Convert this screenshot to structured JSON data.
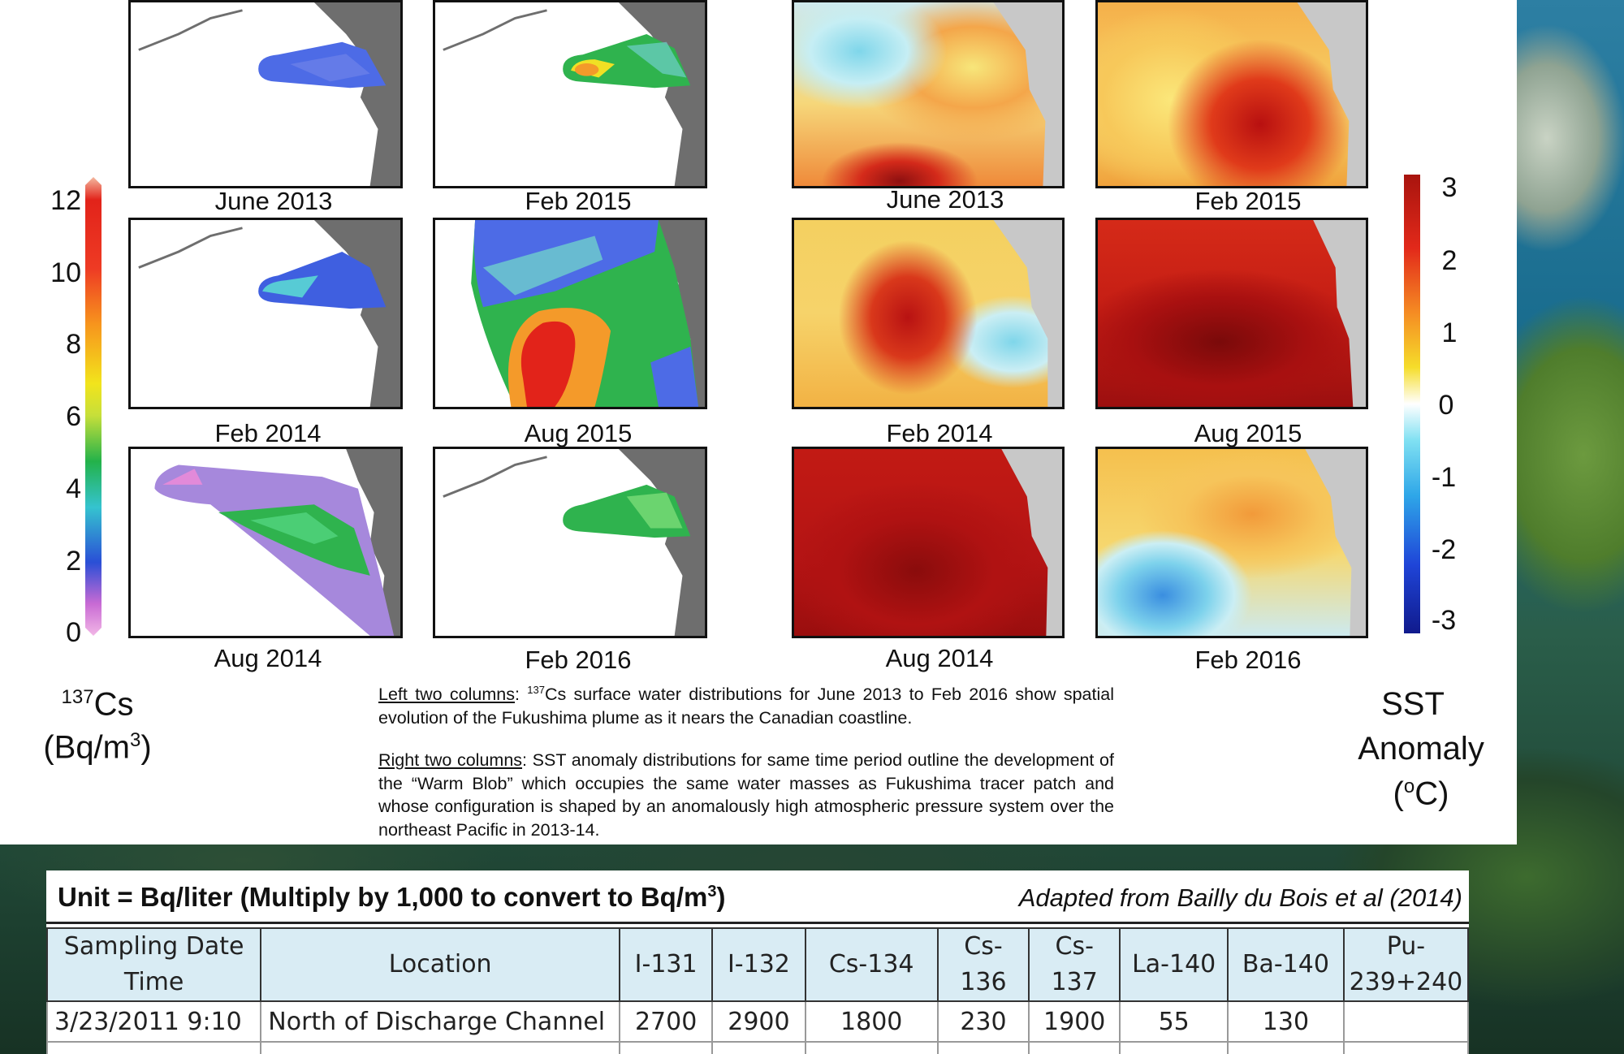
{
  "cs_colorbar": {
    "ticks": [
      "12",
      "10",
      "8",
      "6",
      "4",
      "2",
      "0"
    ],
    "isotope_sup": "137",
    "isotope": "Cs",
    "unit_prefix": "(Bq/m",
    "unit_sup": "3",
    "unit_suffix": ")"
  },
  "sst_colorbar": {
    "ticks": [
      "3",
      "2",
      "1",
      "0",
      "-1",
      "-2",
      "-3"
    ],
    "title_line1": "SST",
    "title_line2": "Anomaly",
    "unit_prefix": "(",
    "unit_sup": "o",
    "unit_suffix": "C)"
  },
  "cs_panels": [
    {
      "label": "June 2013"
    },
    {
      "label": "Feb 2015"
    },
    {
      "label": "Feb 2014"
    },
    {
      "label": "Aug 2015"
    },
    {
      "label": "Aug 2014"
    },
    {
      "label": "Feb 2016"
    }
  ],
  "sst_panels": [
    {
      "label": "June 2013"
    },
    {
      "label": "Feb 2015"
    },
    {
      "label": "Feb 2014"
    },
    {
      "label": "Aug 2015"
    },
    {
      "label": "Aug 2014"
    },
    {
      "label": "Feb 2016"
    }
  ],
  "caption": {
    "left_heading": "Left two columns",
    "left_sup": "137",
    "left_text": "Cs surface water distributions for June 2013 to Feb 2016 show spatial evolution of the Fukushima plume as it nears the Canadian coastline.",
    "right_heading": "Right two columns",
    "right_text": ": SST anomaly distributions for same time period outline the development of the “Warm Blob” which occupies the same water masses as Fukushima tracer patch and whose configuration is shaped by an anomalously high atmospheric pressure system over the northeast Pacific in 2013-14."
  },
  "table": {
    "unit_text": "Unit = Bq/liter (Multiply by 1,000 to convert to Bq/m",
    "unit_sup": "3",
    "unit_close": ")",
    "adapted": "Adapted from Bailly du Bois et al (2014)",
    "headers": [
      "Sampling Date Time",
      "Location",
      "I-131",
      "I-132",
      "Cs-134",
      "Cs-136",
      "Cs-137",
      "La-140",
      "Ba-140",
      "Pu-239+240"
    ],
    "rows": [
      [
        "3/23/2011 9:10",
        "North of Discharge Channel",
        "2700",
        "2900",
        "1800",
        "230",
        "1900",
        "55",
        "130",
        ""
      ]
    ]
  },
  "colors": {
    "land": "#6e6e6e",
    "sst_bg": "#c8c8c8",
    "table_header": "#d9ecf4"
  }
}
